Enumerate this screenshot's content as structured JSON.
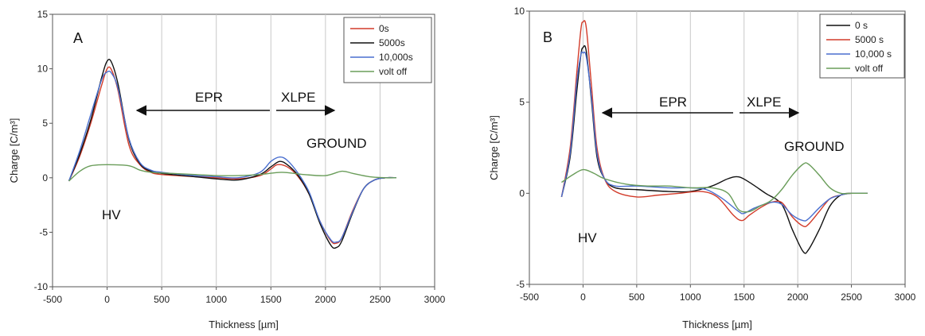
{
  "chart_data": [
    {
      "type": "line",
      "panel": "A",
      "xlabel": "Thickness [µm]",
      "ylabel": "Charge [C/m³]",
      "xlim": [
        -500,
        3000
      ],
      "ylim": [
        -10,
        15
      ],
      "xticks": [
        -500,
        0,
        500,
        1000,
        1500,
        2000,
        2500,
        3000
      ],
      "yticks": [
        -10,
        -5,
        0,
        5,
        10,
        15
      ],
      "grid": "vertical",
      "legend_position": "top-right",
      "legend_entries": [
        "0s",
        "5000s",
        "10,000s",
        "volt off"
      ],
      "series": [
        {
          "name": "0s",
          "color": "#d23b2a",
          "points": [
            [
              -350,
              -0.3
            ],
            [
              -250,
              2
            ],
            [
              -150,
              5
            ],
            [
              -50,
              8.5
            ],
            [
              0,
              10
            ],
            [
              40,
              9.9
            ],
            [
              100,
              8
            ],
            [
              200,
              3
            ],
            [
              300,
              1.2
            ],
            [
              400,
              0.5
            ],
            [
              500,
              0.3
            ],
            [
              800,
              0.1
            ],
            [
              1000,
              0
            ],
            [
              1200,
              -0.1
            ],
            [
              1400,
              0.2
            ],
            [
              1500,
              0.8
            ],
            [
              1560,
              1.2
            ],
            [
              1650,
              1
            ],
            [
              1750,
              0.1
            ],
            [
              1850,
              -1.5
            ],
            [
              1950,
              -4
            ],
            [
              2050,
              -5.8
            ],
            [
              2100,
              -6
            ],
            [
              2150,
              -5.5
            ],
            [
              2250,
              -3
            ],
            [
              2350,
              -1
            ],
            [
              2450,
              -0.2
            ],
            [
              2550,
              0
            ],
            [
              2650,
              0
            ]
          ]
        },
        {
          "name": "5000s",
          "color": "#111111",
          "points": [
            [
              -350,
              -0.3
            ],
            [
              -250,
              2.2
            ],
            [
              -150,
              5.3
            ],
            [
              -50,
              9.2
            ],
            [
              0,
              10.7
            ],
            [
              40,
              10.6
            ],
            [
              100,
              8.6
            ],
            [
              200,
              3.5
            ],
            [
              300,
              1.3
            ],
            [
              400,
              0.6
            ],
            [
              500,
              0.4
            ],
            [
              800,
              0.1
            ],
            [
              1000,
              -0.1
            ],
            [
              1200,
              -0.2
            ],
            [
              1400,
              0.3
            ],
            [
              1500,
              1
            ],
            [
              1580,
              1.5
            ],
            [
              1650,
              1.2
            ],
            [
              1750,
              0.2
            ],
            [
              1850,
              -1.5
            ],
            [
              1950,
              -4.2
            ],
            [
              2050,
              -6.2
            ],
            [
              2100,
              -6.4
            ],
            [
              2150,
              -5.8
            ],
            [
              2250,
              -3.2
            ],
            [
              2350,
              -1
            ],
            [
              2450,
              -0.2
            ],
            [
              2550,
              0
            ],
            [
              2650,
              0
            ]
          ]
        },
        {
          "name": "10,000s",
          "color": "#4a6fcf",
          "points": [
            [
              -350,
              -0.3
            ],
            [
              -250,
              2.5
            ],
            [
              -150,
              5.8
            ],
            [
              -50,
              9
            ],
            [
              0,
              9.7
            ],
            [
              40,
              9.6
            ],
            [
              100,
              8.2
            ],
            [
              200,
              3.6
            ],
            [
              300,
              1.4
            ],
            [
              400,
              0.7
            ],
            [
              500,
              0.5
            ],
            [
              800,
              0.2
            ],
            [
              1000,
              0.1
            ],
            [
              1200,
              0
            ],
            [
              1400,
              0.5
            ],
            [
              1500,
              1.5
            ],
            [
              1580,
              1.9
            ],
            [
              1650,
              1.6
            ],
            [
              1750,
              0.4
            ],
            [
              1850,
              -1.3
            ],
            [
              1950,
              -4
            ],
            [
              2050,
              -5.7
            ],
            [
              2100,
              -5.9
            ],
            [
              2150,
              -5.5
            ],
            [
              2250,
              -3.1
            ],
            [
              2350,
              -1
            ],
            [
              2450,
              -0.2
            ],
            [
              2550,
              0
            ],
            [
              2650,
              0
            ]
          ]
        },
        {
          "name": "volt off",
          "color": "#6a9d5a",
          "points": [
            [
              -350,
              -0.3
            ],
            [
              -250,
              0.6
            ],
            [
              -150,
              1.1
            ],
            [
              0,
              1.2
            ],
            [
              200,
              1.1
            ],
            [
              300,
              0.7
            ],
            [
              400,
              0.5
            ],
            [
              600,
              0.4
            ],
            [
              800,
              0.3
            ],
            [
              1000,
              0.2
            ],
            [
              1200,
              0.2
            ],
            [
              1400,
              0.3
            ],
            [
              1600,
              0.5
            ],
            [
              1800,
              0.3
            ],
            [
              2000,
              0.2
            ],
            [
              2150,
              0.6
            ],
            [
              2250,
              0.4
            ],
            [
              2400,
              0.1
            ],
            [
              2550,
              0
            ],
            [
              2650,
              0
            ]
          ]
        }
      ],
      "annotations": {
        "panel_label": "A",
        "epr": "EPR",
        "xlpe": "XLPE",
        "ground": "GROUND",
        "hv": "HV"
      }
    },
    {
      "type": "line",
      "panel": "B",
      "xlabel": "Thickness [µm]",
      "ylabel": "Charge [C/m³]",
      "xlim": [
        -500,
        3000
      ],
      "ylim": [
        -5,
        10
      ],
      "xticks": [
        -500,
        0,
        500,
        1000,
        1500,
        2000,
        2500,
        3000
      ],
      "yticks": [
        -5,
        0,
        5,
        10
      ],
      "grid": "vertical",
      "legend_position": "top-right",
      "legend_entries": [
        "0 s",
        "5000 s",
        "10,000 s",
        "volt off"
      ],
      "series": [
        {
          "name": "0 s",
          "color": "#111111",
          "points": [
            [
              -200,
              -0.2
            ],
            [
              -120,
              2
            ],
            [
              -60,
              5.5
            ],
            [
              -20,
              7.6
            ],
            [
              0,
              8
            ],
            [
              30,
              7.8
            ],
            [
              80,
              5
            ],
            [
              130,
              2
            ],
            [
              200,
              0.8
            ],
            [
              300,
              0.3
            ],
            [
              500,
              0.2
            ],
            [
              800,
              0.1
            ],
            [
              1000,
              0.1
            ],
            [
              1200,
              0.4
            ],
            [
              1350,
              0.8
            ],
            [
              1450,
              0.9
            ],
            [
              1550,
              0.6
            ],
            [
              1700,
              0
            ],
            [
              1850,
              -0.6
            ],
            [
              1950,
              -2
            ],
            [
              2050,
              -3.2
            ],
            [
              2100,
              -3.1
            ],
            [
              2200,
              -2
            ],
            [
              2300,
              -0.7
            ],
            [
              2400,
              -0.1
            ],
            [
              2500,
              0
            ],
            [
              2650,
              0
            ]
          ]
        },
        {
          "name": "5000 s",
          "color": "#d23b2a",
          "points": [
            [
              -200,
              -0.2
            ],
            [
              -120,
              2.5
            ],
            [
              -60,
              6.5
            ],
            [
              -20,
              9
            ],
            [
              0,
              9.4
            ],
            [
              30,
              9.1
            ],
            [
              80,
              5.8
            ],
            [
              130,
              2.5
            ],
            [
              200,
              0.8
            ],
            [
              300,
              0.1
            ],
            [
              500,
              -0.2
            ],
            [
              700,
              -0.1
            ],
            [
              900,
              0
            ],
            [
              1100,
              0.1
            ],
            [
              1250,
              -0.2
            ],
            [
              1400,
              -1.2
            ],
            [
              1480,
              -1.5
            ],
            [
              1550,
              -1.2
            ],
            [
              1650,
              -0.8
            ],
            [
              1750,
              -0.5
            ],
            [
              1850,
              -0.5
            ],
            [
              1950,
              -1.3
            ],
            [
              2050,
              -1.8
            ],
            [
              2100,
              -1.7
            ],
            [
              2200,
              -1
            ],
            [
              2300,
              -0.3
            ],
            [
              2400,
              -0.1
            ],
            [
              2500,
              0
            ],
            [
              2650,
              0
            ]
          ]
        },
        {
          "name": "10,000 s",
          "color": "#4a6fcf",
          "points": [
            [
              -200,
              -0.2
            ],
            [
              -120,
              2.2
            ],
            [
              -60,
              6
            ],
            [
              -20,
              7.6
            ],
            [
              0,
              7.7
            ],
            [
              30,
              7.5
            ],
            [
              80,
              5.2
            ],
            [
              130,
              2.2
            ],
            [
              200,
              0.8
            ],
            [
              300,
              0.4
            ],
            [
              500,
              0.4
            ],
            [
              800,
              0.3
            ],
            [
              1000,
              0.3
            ],
            [
              1150,
              0.2
            ],
            [
              1300,
              -0.3
            ],
            [
              1450,
              -1
            ],
            [
              1500,
              -1.1
            ],
            [
              1600,
              -0.8
            ],
            [
              1750,
              -0.5
            ],
            [
              1850,
              -0.6
            ],
            [
              1950,
              -1.2
            ],
            [
              2050,
              -1.5
            ],
            [
              2100,
              -1.4
            ],
            [
              2200,
              -0.8
            ],
            [
              2300,
              -0.3
            ],
            [
              2400,
              -0.1
            ],
            [
              2500,
              0
            ],
            [
              2650,
              0
            ]
          ]
        },
        {
          "name": "volt off",
          "color": "#6a9d5a",
          "points": [
            [
              -200,
              0.6
            ],
            [
              -100,
              1
            ],
            [
              0,
              1.3
            ],
            [
              100,
              1.1
            ],
            [
              200,
              0.8
            ],
            [
              400,
              0.5
            ],
            [
              600,
              0.4
            ],
            [
              800,
              0.4
            ],
            [
              1000,
              0.3
            ],
            [
              1200,
              0.3
            ],
            [
              1350,
              0
            ],
            [
              1450,
              -0.9
            ],
            [
              1550,
              -1
            ],
            [
              1650,
              -0.7
            ],
            [
              1750,
              -0.4
            ],
            [
              1850,
              0.2
            ],
            [
              1950,
              1
            ],
            [
              2050,
              1.6
            ],
            [
              2100,
              1.6
            ],
            [
              2200,
              1
            ],
            [
              2300,
              0.3
            ],
            [
              2400,
              0
            ],
            [
              2500,
              0
            ],
            [
              2650,
              0
            ]
          ]
        }
      ],
      "annotations": {
        "panel_label": "B",
        "epr": "EPR",
        "xlpe": "XLPE",
        "ground": "GROUND",
        "hv": "HV"
      }
    }
  ]
}
